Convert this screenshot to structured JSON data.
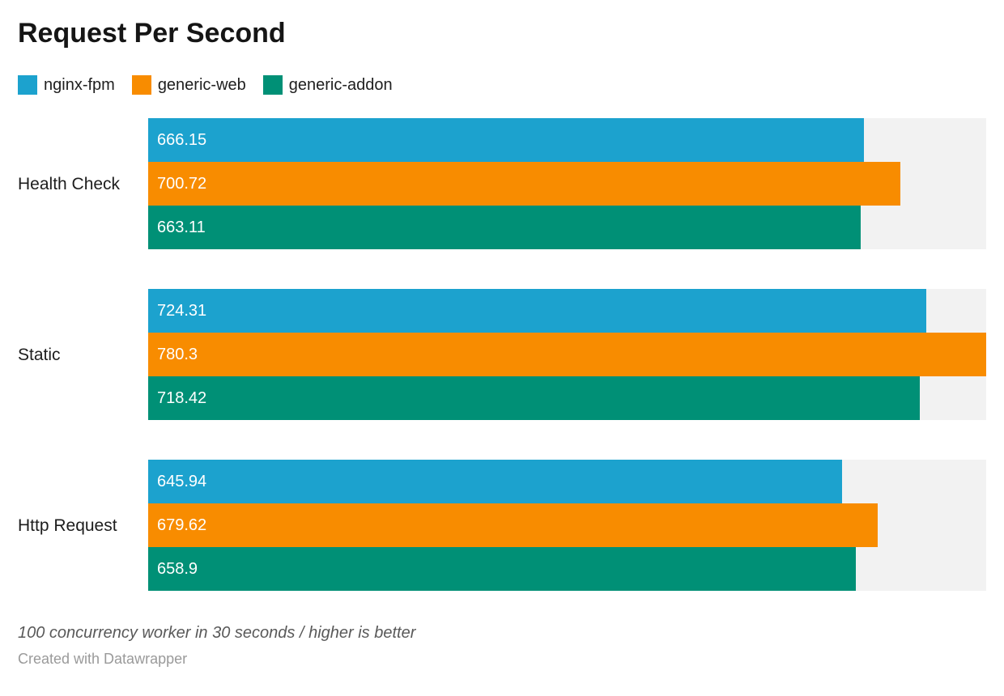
{
  "title": "Request Per Second",
  "legend": [
    {
      "label": "nginx-fpm",
      "color": "#1ca2ce"
    },
    {
      "label": "generic-web",
      "color": "#f88c00"
    },
    {
      "label": "generic-addon",
      "color": "#009076"
    }
  ],
  "chart_data": {
    "type": "bar",
    "orientation": "horizontal",
    "title": "Request Per Second",
    "categories": [
      "Health Check",
      "Static",
      "Http Request"
    ],
    "series": [
      {
        "name": "nginx-fpm",
        "color": "#1ca2ce",
        "values": [
          666.15,
          724.31,
          645.94
        ]
      },
      {
        "name": "generic-web",
        "color": "#f88c00",
        "values": [
          700.72,
          780.3,
          679.62
        ]
      },
      {
        "name": "generic-addon",
        "color": "#009076",
        "values": [
          663.11,
          718.42,
          658.9
        ]
      }
    ],
    "xlim": [
      0,
      780.3
    ],
    "value_labels": true,
    "grid": false,
    "legend_position": "top",
    "track_color": "#f2f2f2",
    "value_label_color": "#ffffff"
  },
  "footer": {
    "notes": "100 concurrency worker in 30 seconds / higher is better",
    "attribution": "Created with Datawrapper"
  },
  "colors": {
    "background": "#ffffff",
    "title_text": "#151515",
    "category_text": "#1d1d1d",
    "notes_text": "#595959",
    "attribution_text": "#9a9a9a",
    "bar_track": "#f2f2f2"
  }
}
